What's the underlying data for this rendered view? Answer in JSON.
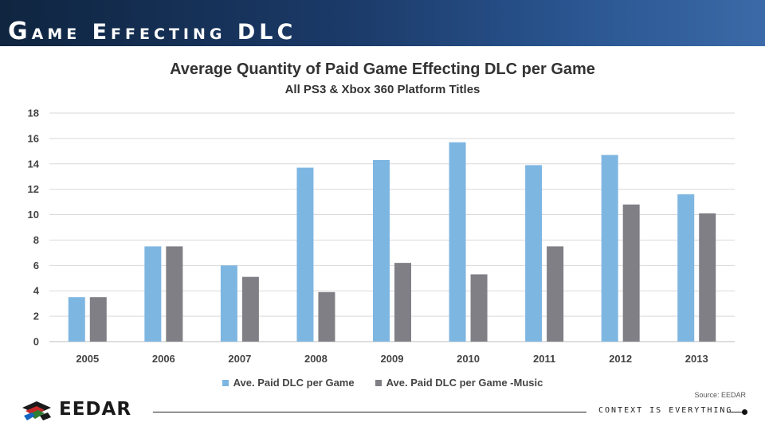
{
  "header": {
    "title": "Game Effecting DLC"
  },
  "chart_data": {
    "type": "bar",
    "title": "Average Quantity of Paid Game Effecting DLC per Game",
    "subtitle": "All PS3 & Xbox 360 Platform Titles",
    "categories": [
      "2005",
      "2006",
      "2007",
      "2008",
      "2009",
      "2010",
      "2011",
      "2012",
      "2013"
    ],
    "series": [
      {
        "name": "Ave. Paid DLC per Game",
        "color": "#7eb6e2",
        "values": [
          3.5,
          7.5,
          6.0,
          13.7,
          14.3,
          15.7,
          13.9,
          14.7,
          11.6
        ]
      },
      {
        "name": "Ave. Paid DLC per Game -Music",
        "color": "#7f7f85",
        "values": [
          3.5,
          7.5,
          5.1,
          3.9,
          6.2,
          5.3,
          7.5,
          10.8,
          10.1
        ]
      }
    ],
    "ylim": [
      0,
      18
    ],
    "yticks": [
      0,
      2,
      4,
      6,
      8,
      10,
      12,
      14,
      16,
      18
    ],
    "grid": true,
    "legend_position": "bottom"
  },
  "source": "Source: EEDAR",
  "footer": {
    "logo_text": "EEDAR",
    "tagline": "CONTEXT IS EVERYTHING"
  }
}
